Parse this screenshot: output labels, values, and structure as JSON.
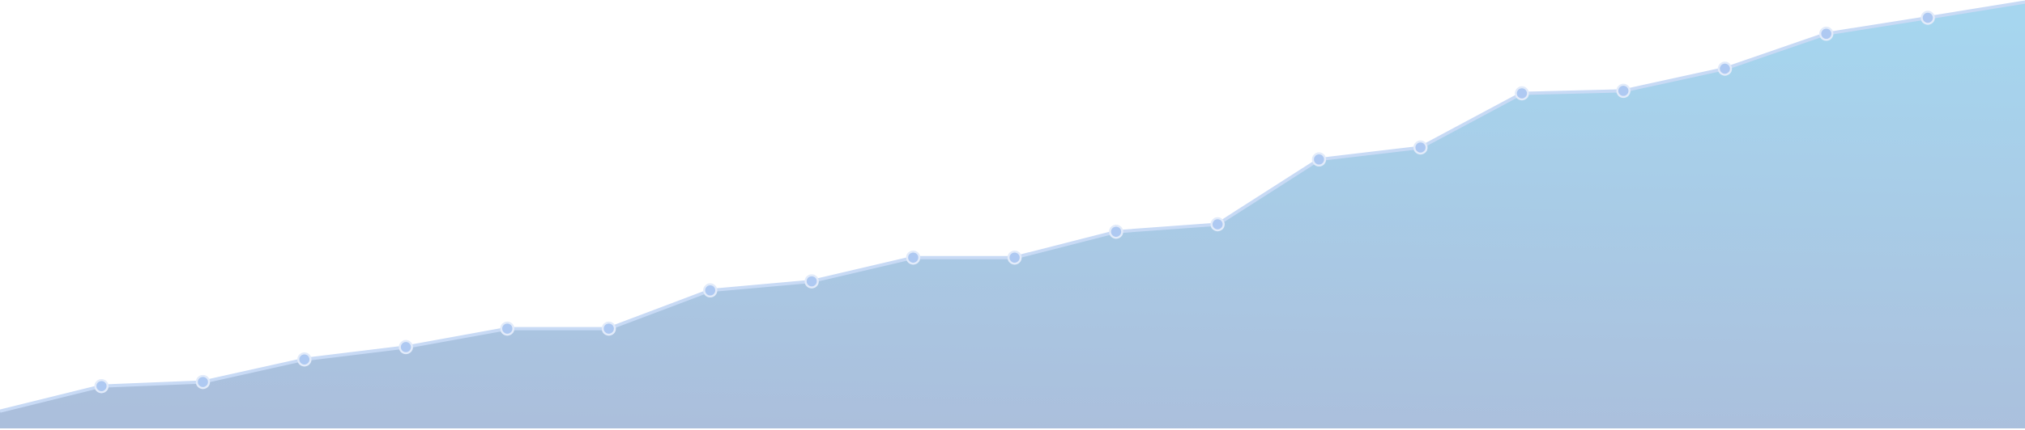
{
  "chart_data": {
    "type": "area",
    "title": "",
    "xlabel": "",
    "ylabel": "",
    "axes_visible": false,
    "grid": false,
    "legend": "none",
    "ylim": [
      0,
      100
    ],
    "x": [
      0,
      1,
      2,
      3,
      4,
      5,
      6,
      7,
      8,
      9,
      10,
      11,
      12,
      13,
      14,
      15,
      16,
      17,
      18,
      19,
      20
    ],
    "series": [
      {
        "values": [
          4.2,
          10.3,
          11.3,
          16.8,
          19.8,
          24.3,
          24.3,
          33.6,
          35.8,
          41.6,
          41.6,
          47.9,
          49.7,
          65.5,
          68.4,
          81.6,
          82.2,
          87.6,
          96.1,
          100.0,
          104.0
        ]
      }
    ],
    "colors": {
      "fill_top": "#a6d6ef",
      "fill_bottom": "#abbfdc",
      "line": "#c8daf5",
      "marker": "#aec9f2",
      "marker_stroke": "#e2ebfa"
    }
  }
}
